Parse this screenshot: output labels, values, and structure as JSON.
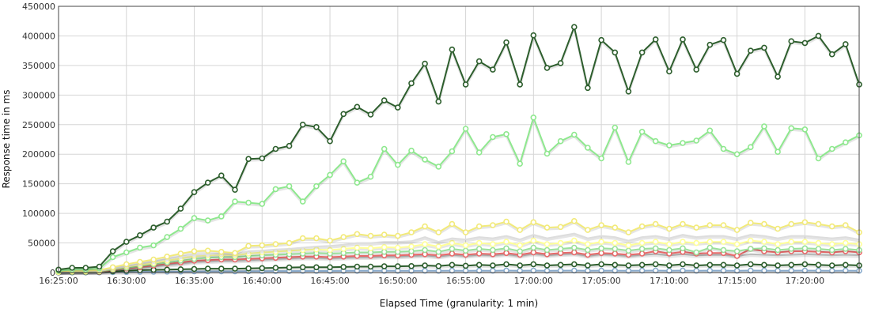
{
  "chart_data": {
    "type": "line",
    "xlabel": "Elapsed Time (granularity: 1 min)",
    "ylabel": "Response time in ms",
    "ylim": [
      0,
      450000
    ],
    "yticks": [
      0,
      50000,
      100000,
      150000,
      200000,
      250000,
      300000,
      350000,
      400000,
      450000
    ],
    "yticklabels": [
      "0",
      "50000",
      "100000",
      "150000",
      "200000",
      "250000",
      "300000",
      "350000",
      "400000",
      "450000"
    ],
    "xlim_minutes": [
      0,
      59
    ],
    "xticks_minutes": [
      0,
      5,
      10,
      15,
      20,
      25,
      30,
      35,
      40,
      45,
      50,
      55
    ],
    "xticklabels": [
      "16:25:00",
      "16:30:00",
      "16:35:00",
      "16:40:00",
      "16:45:00",
      "16:50:00",
      "16:55:00",
      "17:00:00",
      "17:05:00",
      "17:10:00",
      "17:15:00",
      "17:20:00"
    ],
    "grid": true,
    "legend": "none",
    "series": [
      {
        "color": "#2d5e2d",
        "markers": true,
        "values": [
          5000,
          8000,
          8000,
          10000,
          36000,
          52000,
          63000,
          76000,
          86000,
          108000,
          136000,
          152000,
          164000,
          140000,
          192000,
          193000,
          209000,
          214000,
          250000,
          246000,
          222000,
          268000,
          280000,
          267000,
          291000,
          279000,
          320000,
          353000,
          289000,
          377000,
          318000,
          357000,
          343000,
          389000,
          318000,
          401000,
          346000,
          354000,
          415000,
          312000,
          393000,
          372000,
          306000,
          372000,
          394000,
          340000,
          394000,
          343000,
          385000,
          393000,
          336000,
          375000,
          380000,
          331000,
          391000,
          388000,
          400000,
          369000,
          386000,
          318000
        ]
      },
      {
        "color": "#8ee88e",
        "markers": true,
        "values": [
          3000,
          5000,
          5000,
          7000,
          26000,
          34000,
          42000,
          46000,
          60000,
          74000,
          92000,
          88000,
          95000,
          120000,
          118000,
          116000,
          141000,
          146000,
          120000,
          146000,
          165000,
          188000,
          152000,
          162000,
          209000,
          182000,
          206000,
          191000,
          179000,
          205000,
          243000,
          203000,
          229000,
          234000,
          184000,
          262000,
          201000,
          222000,
          233000,
          211000,
          193000,
          245000,
          187000,
          238000,
          222000,
          215000,
          219000,
          223000,
          240000,
          209000,
          200000,
          212000,
          247000,
          204000,
          244000,
          242000,
          193000,
          209000,
          220000,
          232000
        ]
      },
      {
        "color": "#f2ea7a",
        "markers": true,
        "values": [
          2000,
          3000,
          3000,
          4000,
          9000,
          14000,
          18000,
          22000,
          27000,
          32000,
          36000,
          37000,
          35000,
          33000,
          45000,
          46000,
          48000,
          50000,
          58000,
          58000,
          54000,
          60000,
          65000,
          62000,
          64000,
          62000,
          68000,
          78000,
          68000,
          82000,
          68000,
          78000,
          80000,
          86000,
          72000,
          85000,
          76000,
          77000,
          87000,
          72000,
          80000,
          76000,
          68000,
          78000,
          82000,
          74000,
          82000,
          76000,
          80000,
          80000,
          72000,
          84000,
          82000,
          74000,
          82000,
          85000,
          82000,
          78000,
          80000,
          68000
        ]
      },
      {
        "color": "#dddddd",
        "markers": false,
        "values": [
          1500,
          2500,
          2500,
          3000,
          7000,
          11000,
          15000,
          19000,
          23000,
          27000,
          30000,
          31000,
          32000,
          31000,
          36000,
          37000,
          39000,
          40000,
          42000,
          44000,
          45000,
          47000,
          50000,
          50000,
          52000,
          52000,
          53000,
          60000,
          52000,
          58000,
          56000,
          60000,
          58000,
          62000,
          56000,
          64000,
          58000,
          62000,
          66000,
          58000,
          62000,
          60000,
          54000,
          60000,
          62000,
          58000,
          64000,
          60000,
          62000,
          62000,
          58000,
          64000,
          62000,
          58000,
          62000,
          62000,
          60000,
          58000,
          60000,
          56000
        ]
      },
      {
        "color": "#ffff99",
        "markers": true,
        "values": [
          1000,
          2000,
          2000,
          2500,
          6000,
          10000,
          13000,
          16000,
          20000,
          24000,
          28000,
          29000,
          30000,
          29000,
          32000,
          34000,
          35000,
          37000,
          38000,
          39000,
          38000,
          40000,
          42000,
          41000,
          43000,
          42000,
          44000,
          48000,
          44000,
          50000,
          46000,
          50000,
          48000,
          52000,
          46000,
          54000,
          48000,
          50000,
          54000,
          48000,
          52000,
          50000,
          46000,
          50000,
          52000,
          48000,
          52000,
          50000,
          52000,
          52000,
          48000,
          54000,
          52000,
          48000,
          52000,
          52000,
          50000,
          48000,
          50000,
          48000
        ]
      },
      {
        "color": "#9be09b",
        "markers": true,
        "values": [
          1000,
          1500,
          1500,
          2000,
          5000,
          8000,
          11000,
          14000,
          17000,
          20000,
          23000,
          25000,
          26000,
          26000,
          28000,
          29000,
          30000,
          31000,
          32000,
          33000,
          32000,
          33000,
          34000,
          34000,
          35000,
          35000,
          36000,
          38000,
          35000,
          40000,
          37000,
          40000,
          38000,
          41000,
          36000,
          42000,
          38000,
          40000,
          42000,
          38000,
          41000,
          40000,
          37000,
          40000,
          41000,
          38000,
          41000,
          34000,
          42000,
          38000,
          36000,
          40000,
          41000,
          38000,
          40000,
          41000,
          40000,
          38000,
          40000,
          38000
        ]
      },
      {
        "color": "#e86a6a",
        "markers": true,
        "values": [
          800,
          1200,
          1200,
          1500,
          4000,
          7000,
          9000,
          12000,
          15000,
          17000,
          20000,
          21000,
          22000,
          22000,
          23000,
          24000,
          25000,
          26000,
          27000,
          27000,
          26000,
          27000,
          28000,
          28000,
          29000,
          29000,
          30000,
          31000,
          29000,
          32000,
          30000,
          32000,
          31000,
          33000,
          30000,
          34000,
          31000,
          33000,
          34000,
          30000,
          33000,
          32000,
          30000,
          32000,
          36000,
          32000,
          35000,
          32000,
          33000,
          33000,
          28000,
          40000,
          36000,
          34000,
          36000,
          36000,
          35000,
          34000,
          36000,
          34000
        ]
      },
      {
        "color": "#bbbbbb",
        "markers": false,
        "values": [
          800,
          1200,
          1200,
          1500,
          4000,
          6000,
          8000,
          10000,
          13000,
          15000,
          18000,
          19000,
          20000,
          20000,
          21000,
          22000,
          23000,
          24000,
          25000,
          25000,
          24000,
          25000,
          26000,
          26000,
          27000,
          27000,
          28000,
          29000,
          27000,
          30000,
          28000,
          30000,
          29000,
          31000,
          28000,
          32000,
          29000,
          31000,
          32000,
          28000,
          31000,
          30000,
          28000,
          30000,
          31000,
          29000,
          31000,
          29000,
          30000,
          30000,
          28000,
          31000,
          30000,
          29000,
          30000,
          31000,
          30000,
          29000,
          30000,
          29000
        ]
      },
      {
        "color": "#2d5e2d",
        "markers": true,
        "values": [
          500,
          800,
          800,
          1000,
          2000,
          3000,
          4000,
          4500,
          5000,
          5500,
          6000,
          6500,
          6500,
          6500,
          7000,
          7500,
          8000,
          8500,
          9000,
          9000,
          9000,
          9500,
          10000,
          10000,
          10500,
          10500,
          11000,
          12000,
          11000,
          13000,
          11500,
          13000,
          12000,
          14000,
          12000,
          14000,
          12000,
          13000,
          14000,
          12000,
          14000,
          13000,
          12000,
          13000,
          14000,
          12000,
          14000,
          12000,
          13000,
          13000,
          12000,
          14000,
          13000,
          12000,
          13000,
          14000,
          13000,
          12000,
          13000,
          12000
        ]
      },
      {
        "color": "#88aacc",
        "markers": true,
        "values": [
          200,
          300,
          300,
          400,
          800,
          1000,
          1200,
          1400,
          1600,
          1800,
          2000,
          2100,
          2200,
          2200,
          2300,
          2400,
          2500,
          2600,
          2700,
          2700,
          2700,
          2800,
          2900,
          2900,
          3000,
          3000,
          3000,
          3100,
          3000,
          3200,
          3100,
          3200,
          3100,
          3300,
          3100,
          3300,
          3100,
          3200,
          3300,
          3100,
          3200,
          3200,
          3000,
          3200,
          3300,
          3100,
          3300,
          3100,
          3200,
          3200,
          3100,
          3300,
          3200,
          3100,
          3200,
          3300,
          3200,
          3100,
          3200,
          3100
        ]
      }
    ]
  }
}
